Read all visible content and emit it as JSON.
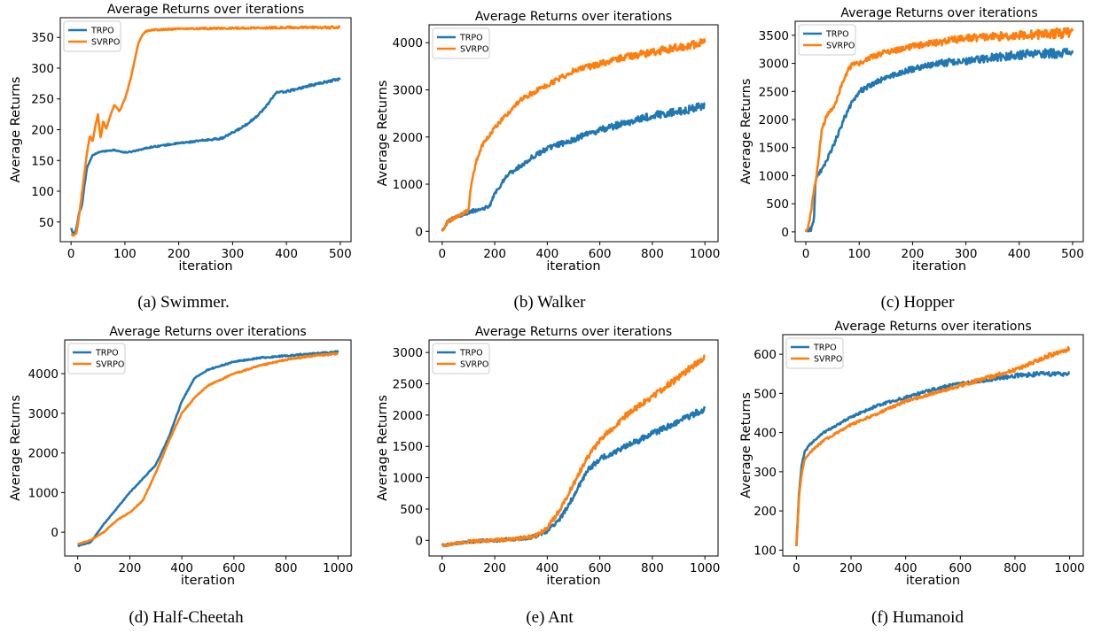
{
  "chart_data": [
    {
      "type": "line",
      "panel": "a",
      "title": "Average Returns  over iterations",
      "xlabel": "iteration",
      "ylabel": "Average Returns",
      "caption": "(a)   Swimmer.",
      "xlim": [
        -20,
        520
      ],
      "ylim": [
        18,
        382
      ],
      "xticks": [
        0,
        100,
        200,
        300,
        400,
        500
      ],
      "yticks": [
        50,
        100,
        150,
        200,
        250,
        300,
        350
      ],
      "legend_position": "top-left",
      "noise": 2,
      "series": [
        {
          "name": "TRPO",
          "color": "#1f77b4",
          "x": [
            0,
            5,
            10,
            15,
            20,
            25,
            30,
            40,
            50,
            60,
            80,
            100,
            110,
            130,
            150,
            200,
            250,
            280,
            300,
            320,
            340,
            360,
            380,
            400,
            450,
            500
          ],
          "y": [
            40,
            28,
            40,
            65,
            75,
            110,
            140,
            158,
            163,
            165,
            167,
            163,
            164,
            168,
            172,
            178,
            183,
            186,
            195,
            205,
            218,
            235,
            260,
            262,
            273,
            283
          ]
        },
        {
          "name": "SVRPO",
          "color": "#ff7f0e",
          "x": [
            0,
            5,
            10,
            15,
            20,
            25,
            30,
            35,
            40,
            45,
            50,
            55,
            60,
            65,
            70,
            80,
            90,
            100,
            110,
            120,
            125,
            130,
            135,
            140,
            150,
            200,
            300,
            400,
            500
          ],
          "y": [
            30,
            28,
            32,
            60,
            95,
            130,
            165,
            190,
            180,
            205,
            225,
            185,
            215,
            200,
            215,
            240,
            230,
            250,
            280,
            320,
            340,
            350,
            357,
            360,
            362,
            364,
            365,
            366,
            366
          ]
        }
      ]
    },
    {
      "type": "line",
      "panel": "b",
      "title": "Average Returns  over iterations",
      "xlabel": "iteration",
      "ylabel": "Average Returns",
      "caption": "(b)   Walker",
      "xlim": [
        -50,
        1050
      ],
      "ylim": [
        -220,
        4380
      ],
      "xticks": [
        0,
        200,
        400,
        600,
        800,
        1000
      ],
      "yticks": [
        0,
        1000,
        2000,
        3000,
        4000
      ],
      "legend_position": "top-left",
      "noise": 90,
      "series": [
        {
          "name": "TRPO",
          "color": "#1f77b4",
          "x": [
            0,
            20,
            50,
            100,
            150,
            180,
            200,
            250,
            300,
            350,
            400,
            500,
            600,
            700,
            800,
            900,
            1000
          ],
          "y": [
            0,
            200,
            300,
            400,
            480,
            520,
            800,
            1200,
            1400,
            1600,
            1750,
            1950,
            2150,
            2300,
            2450,
            2550,
            2650
          ]
        },
        {
          "name": "SVRPO",
          "color": "#ff7f0e",
          "x": [
            0,
            20,
            50,
            100,
            110,
            130,
            150,
            200,
            250,
            300,
            400,
            500,
            600,
            700,
            800,
            900,
            1000
          ],
          "y": [
            0,
            200,
            300,
            450,
            1000,
            1500,
            1800,
            2200,
            2500,
            2800,
            3100,
            3400,
            3550,
            3700,
            3800,
            3900,
            4000
          ]
        }
      ]
    },
    {
      "type": "line",
      "panel": "c",
      "title": "Average Returns  over iterations",
      "xlabel": "iteration",
      "ylabel": "Average Returns",
      "caption": "(c)   Hopper",
      "xlim": [
        -20,
        520
      ],
      "ylim": [
        -175,
        3750
      ],
      "xticks": [
        0,
        100,
        200,
        300,
        400,
        500
      ],
      "yticks": [
        0,
        500,
        1000,
        1500,
        2000,
        2500,
        3000,
        3500
      ],
      "legend_position": "top-left",
      "noise": 90,
      "series": [
        {
          "name": "TRPO",
          "color": "#1f77b4",
          "x": [
            0,
            10,
            15,
            18,
            20,
            30,
            50,
            80,
            100,
            150,
            200,
            250,
            300,
            400,
            500
          ],
          "y": [
            0,
            50,
            200,
            900,
            1000,
            1100,
            1500,
            2200,
            2500,
            2750,
            2900,
            3000,
            3050,
            3150,
            3200
          ]
        },
        {
          "name": "SVRPO",
          "color": "#ff7f0e",
          "x": [
            0,
            5,
            10,
            15,
            20,
            30,
            40,
            50,
            60,
            70,
            80,
            90,
            100,
            120,
            150,
            200,
            300,
            400,
            500
          ],
          "y": [
            0,
            100,
            400,
            700,
            1000,
            1800,
            2100,
            2200,
            2400,
            2700,
            2900,
            3000,
            3000,
            3100,
            3200,
            3300,
            3450,
            3500,
            3550
          ]
        }
      ]
    },
    {
      "type": "line",
      "panel": "d",
      "title": "Average Returns  over iterations",
      "xlabel": "iteration",
      "ylabel": "Average Returns",
      "caption": "(d)   Half-Cheetah",
      "xlim": [
        -50,
        1050
      ],
      "ylim": [
        -600,
        4850
      ],
      "xticks": [
        0,
        200,
        400,
        600,
        800,
        1000
      ],
      "yticks": [
        0,
        1000,
        2000,
        3000,
        4000
      ],
      "legend_position": "top-left",
      "noise": 22,
      "series": [
        {
          "name": "TRPO",
          "color": "#1f77b4",
          "x": [
            0,
            50,
            100,
            200,
            300,
            350,
            400,
            450,
            500,
            600,
            700,
            800,
            900,
            1000
          ],
          "y": [
            -350,
            -250,
            200,
            1000,
            1700,
            2400,
            3300,
            3900,
            4100,
            4300,
            4400,
            4450,
            4500,
            4550
          ]
        },
        {
          "name": "SVRPO",
          "color": "#ff7f0e",
          "x": [
            0,
            50,
            100,
            150,
            200,
            250,
            300,
            350,
            400,
            450,
            500,
            600,
            700,
            800,
            900,
            1000
          ],
          "y": [
            -300,
            -200,
            0,
            300,
            500,
            800,
            1500,
            2300,
            3000,
            3400,
            3700,
            4000,
            4200,
            4350,
            4450,
            4500
          ]
        }
      ]
    },
    {
      "type": "line",
      "panel": "e",
      "title": "Average Returns  over iterations",
      "xlabel": "iteration",
      "ylabel": "Average Returns",
      "caption": "(e)   Ant",
      "xlim": [
        -50,
        1050
      ],
      "ylim": [
        -250,
        3200
      ],
      "xticks": [
        0,
        200,
        400,
        600,
        800,
        1000
      ],
      "yticks": [
        0,
        500,
        1000,
        1500,
        2000,
        2500,
        3000
      ],
      "legend_position": "top-left",
      "noise": 55,
      "series": [
        {
          "name": "TRPO",
          "color": "#1f77b4",
          "x": [
            0,
            100,
            200,
            300,
            350,
            400,
            450,
            500,
            550,
            600,
            700,
            800,
            900,
            1000
          ],
          "y": [
            -80,
            -20,
            0,
            30,
            60,
            150,
            350,
            700,
            1100,
            1300,
            1500,
            1700,
            1900,
            2100
          ]
        },
        {
          "name": "SVRPO",
          "color": "#ff7f0e",
          "x": [
            0,
            100,
            200,
            300,
            350,
            400,
            450,
            500,
            550,
            600,
            700,
            800,
            900,
            1000
          ],
          "y": [
            -80,
            -20,
            0,
            30,
            60,
            200,
            500,
            900,
            1300,
            1600,
            2000,
            2300,
            2600,
            2950
          ]
        }
      ]
    },
    {
      "type": "line",
      "panel": "f",
      "title": "Average Returns  over iterations",
      "xlabel": "iteration",
      "ylabel": "Average Returns",
      "caption": "(f)   Humanoid",
      "xlim": [
        -50,
        1050
      ],
      "ylim": [
        85,
        650
      ],
      "xticks": [
        0,
        200,
        400,
        600,
        800,
        1000
      ],
      "yticks": [
        100,
        200,
        300,
        400,
        500,
        600
      ],
      "legend_position": "top-left",
      "noise": 6,
      "series": [
        {
          "name": "TRPO",
          "color": "#1f77b4",
          "x": [
            0,
            10,
            20,
            30,
            50,
            100,
            200,
            300,
            400,
            500,
            600,
            700,
            800,
            900,
            1000
          ],
          "y": [
            110,
            250,
            320,
            350,
            370,
            400,
            440,
            470,
            490,
            510,
            525,
            535,
            545,
            550,
            550
          ]
        },
        {
          "name": "SVRPO",
          "color": "#ff7f0e",
          "x": [
            0,
            10,
            20,
            30,
            50,
            100,
            200,
            300,
            400,
            500,
            600,
            700,
            800,
            900,
            1000
          ],
          "y": [
            110,
            240,
            300,
            330,
            350,
            380,
            420,
            450,
            480,
            500,
            520,
            540,
            560,
            590,
            615
          ]
        }
      ]
    }
  ]
}
